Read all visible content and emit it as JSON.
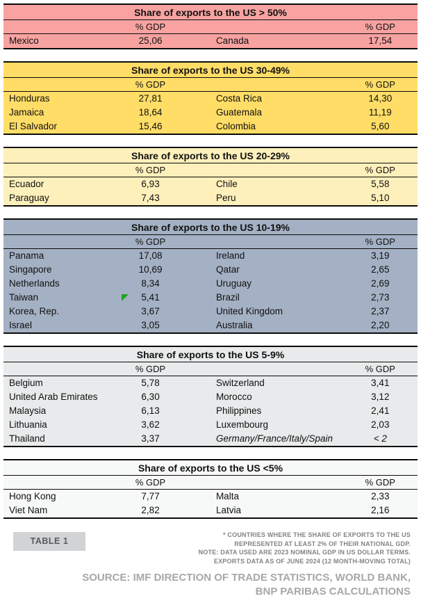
{
  "sections": [
    {
      "title": "Share of exports to the US > 50%",
      "bg": "#F8A3A1",
      "col_headers": [
        "% GDP",
        "% GDP"
      ],
      "rows": [
        {
          "country_left": "Mexico",
          "value_left": "25,06",
          "country_right": "Canada",
          "value_right": "17,54"
        }
      ]
    },
    {
      "title": "Share of exports to the US 30-49%",
      "bg": "#FFDD67",
      "col_headers": [
        "% GDP",
        "% GDP"
      ],
      "rows": [
        {
          "country_left": "Honduras",
          "value_left": "27,81",
          "country_right": "Costa Rica",
          "value_right": "14,30"
        },
        {
          "country_left": "Jamaica",
          "value_left": "18,64",
          "country_right": "Guatemala",
          "value_right": "11,19"
        },
        {
          "country_left": "El Salvador",
          "value_left": "15,46",
          "country_right": "Colombia",
          "value_right": "5,60"
        }
      ]
    },
    {
      "title": "Share of exports to the US 20-29%",
      "bg": "#FEF0BB",
      "col_headers": [
        "% GDP",
        "% GDP"
      ],
      "rows": [
        {
          "country_left": "Ecuador",
          "value_left": "6,93",
          "country_right": "Chile",
          "value_right": "5,58"
        },
        {
          "country_left": "Paraguay",
          "value_left": "7,43",
          "country_right": "Peru",
          "value_right": "5,10"
        }
      ]
    },
    {
      "title": "Share of exports to the US 10-19%",
      "bg": "#A4B1C4",
      "col_headers": [
        "% GDP",
        "% GDP"
      ],
      "rows": [
        {
          "country_left": "Panama",
          "value_left": "17,08",
          "country_right": "Ireland",
          "value_right": "3,19"
        },
        {
          "country_left": "Singapore",
          "value_left": "10,69",
          "country_right": "Qatar",
          "value_right": "2,65"
        },
        {
          "country_left": "Netherlands",
          "value_left": "8,34",
          "country_right": "Uruguay",
          "value_right": "2,69"
        },
        {
          "country_left": "Taiwan",
          "value_left": "5,41",
          "country_right": "Brazil",
          "value_right": "2,73"
        },
        {
          "country_left": "Korea, Rep.",
          "value_left": "3,67",
          "country_right": "United Kingdom",
          "value_right": "2,37"
        },
        {
          "country_left": "Israel",
          "value_left": "3,05",
          "country_right": "Australia",
          "value_right": "2,20"
        }
      ]
    },
    {
      "title": "Share of exports to the US 5-9%",
      "bg": "#E8EAEB",
      "col_headers": [
        "% GDP",
        "% GDP"
      ],
      "rows": [
        {
          "country_left": "Belgium",
          "value_left": "5,78",
          "country_right": "Switzerland",
          "value_right": "3,41"
        },
        {
          "country_left": "United Arab Emirates",
          "value_left": "6,30",
          "country_right": "Morocco",
          "value_right": "3,12"
        },
        {
          "country_left": "Malaysia",
          "value_left": "6,13",
          "country_right": "Philippines",
          "value_right": "2,41"
        },
        {
          "country_left": "Lithuania",
          "value_left": "3,62",
          "country_right": "Luxembourg",
          "value_right": "2,03"
        },
        {
          "country_left": "Thailand",
          "value_left": "3,37",
          "country_right": "Germany/France/Italy/Spain",
          "value_right": "< 2"
        }
      ]
    },
    {
      "title": "Share of exports to the US <5%",
      "bg": "#F7F8F8",
      "col_headers": [
        "% GDP",
        "% GDP"
      ],
      "rows": [
        {
          "country_left": "Hong Kong",
          "value_left": "7,77",
          "country_right": "Malta",
          "value_right": "2,33"
        },
        {
          "country_left": "Viet Nam",
          "value_left": "2,82",
          "country_right": "Latvia",
          "value_right": "2,16"
        }
      ]
    }
  ],
  "footer": {
    "table_label": "TABLE 1",
    "note_lines": [
      "* COUNTRIES WHERE THE SHARE OF EXPORTS TO THE US",
      "REPRESENTED AT LEAST 2% OF THEIR NATIONAL GDP.",
      "NOTE: DATA USED ARE 2023 NOMINAL GDP IN US DOLLAR TERMS.",
      "EXPORTS DATA AS OF JUNE 2024 (12 MONTH-MOVING TOTAL)"
    ],
    "source_lines": [
      "SOURCE: IMF DIRECTION OF TRADE STATISTICS, WORLD BANK,",
      "BNP PARIBAS CALCULATIONS"
    ]
  },
  "colors": {
    "bracket_over_50": "#F8A3A1",
    "bracket_30_49": "#FFDD67",
    "bracket_20_29": "#FEF0BB",
    "bracket_10_19": "#A4B1C4",
    "bracket_5_9": "#E8EAEB",
    "bracket_under_5": "#F7F8F8",
    "border": "#0B0B0B",
    "table_label_bg": "#D2D3D5",
    "note_text": "#808285",
    "source_text": "#A5A7AA",
    "cursor_green": "#21A126"
  },
  "chart_data": {
    "type": "table",
    "title": "Share of exports to the US (exports to the US as % of national GDP)",
    "value_label": "% GDP",
    "groups": [
      {
        "bracket": "> 50%",
        "entries": [
          {
            "country": "Mexico",
            "pct_gdp": 25.06
          },
          {
            "country": "Canada",
            "pct_gdp": 17.54
          }
        ]
      },
      {
        "bracket": "30-49%",
        "entries": [
          {
            "country": "Honduras",
            "pct_gdp": 27.81
          },
          {
            "country": "Costa Rica",
            "pct_gdp": 14.3
          },
          {
            "country": "Jamaica",
            "pct_gdp": 18.64
          },
          {
            "country": "Guatemala",
            "pct_gdp": 11.19
          },
          {
            "country": "El Salvador",
            "pct_gdp": 15.46
          },
          {
            "country": "Colombia",
            "pct_gdp": 5.6
          }
        ]
      },
      {
        "bracket": "20-29%",
        "entries": [
          {
            "country": "Ecuador",
            "pct_gdp": 6.93
          },
          {
            "country": "Chile",
            "pct_gdp": 5.58
          },
          {
            "country": "Paraguay",
            "pct_gdp": 7.43
          },
          {
            "country": "Peru",
            "pct_gdp": 5.1
          }
        ]
      },
      {
        "bracket": "10-19%",
        "entries": [
          {
            "country": "Panama",
            "pct_gdp": 17.08
          },
          {
            "country": "Ireland",
            "pct_gdp": 3.19
          },
          {
            "country": "Singapore",
            "pct_gdp": 10.69
          },
          {
            "country": "Qatar",
            "pct_gdp": 2.65
          },
          {
            "country": "Netherlands",
            "pct_gdp": 8.34
          },
          {
            "country": "Uruguay",
            "pct_gdp": 2.69
          },
          {
            "country": "Taiwan",
            "pct_gdp": 5.41
          },
          {
            "country": "Brazil",
            "pct_gdp": 2.73
          },
          {
            "country": "Korea, Rep.",
            "pct_gdp": 3.67
          },
          {
            "country": "United Kingdom",
            "pct_gdp": 2.37
          },
          {
            "country": "Israel",
            "pct_gdp": 3.05
          },
          {
            "country": "Australia",
            "pct_gdp": 2.2
          }
        ]
      },
      {
        "bracket": "5-9%",
        "entries": [
          {
            "country": "Belgium",
            "pct_gdp": 5.78
          },
          {
            "country": "Switzerland",
            "pct_gdp": 3.41
          },
          {
            "country": "United Arab Emirates",
            "pct_gdp": 6.3
          },
          {
            "country": "Morocco",
            "pct_gdp": 3.12
          },
          {
            "country": "Malaysia",
            "pct_gdp": 6.13
          },
          {
            "country": "Philippines",
            "pct_gdp": 2.41
          },
          {
            "country": "Lithuania",
            "pct_gdp": 3.62
          },
          {
            "country": "Luxembourg",
            "pct_gdp": 2.03
          },
          {
            "country": "Thailand",
            "pct_gdp": 3.37
          },
          {
            "country": "Germany/France/Italy/Spain",
            "pct_gdp": "< 2"
          }
        ]
      },
      {
        "bracket": "<5%",
        "entries": [
          {
            "country": "Hong Kong",
            "pct_gdp": 7.77
          },
          {
            "country": "Malta",
            "pct_gdp": 2.33
          },
          {
            "country": "Viet Nam",
            "pct_gdp": 2.82
          },
          {
            "country": "Latvia",
            "pct_gdp": 2.16
          }
        ]
      }
    ]
  }
}
